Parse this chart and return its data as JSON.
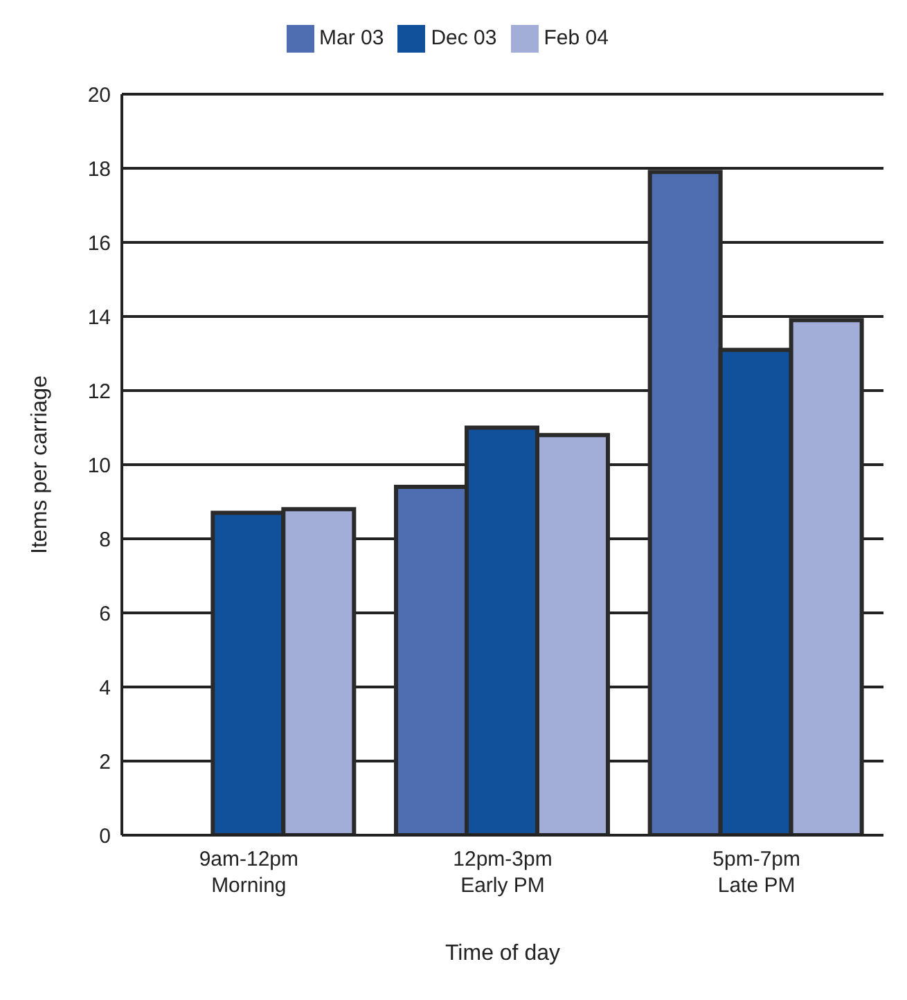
{
  "chart_data": {
    "type": "bar",
    "xlabel": "Time of day",
    "ylabel": "Items per carriage",
    "categories": [
      "9am-12pm\nMorning",
      "12pm-3pm\nEarly PM",
      "5pm-7pm\nLate PM"
    ],
    "series": [
      {
        "name": "Mar 03",
        "color": "#4e6eb1",
        "values": [
          null,
          9.4,
          17.9
        ]
      },
      {
        "name": "Dec 03",
        "color": "#11519c",
        "values": [
          8.7,
          11.0,
          13.1
        ]
      },
      {
        "name": "Feb 04",
        "color": "#a2aed8",
        "values": [
          8.8,
          10.8,
          13.9
        ]
      }
    ],
    "ylim": [
      0,
      20
    ],
    "yticks": [
      0,
      2,
      4,
      6,
      8,
      10,
      12,
      14,
      16,
      18,
      20
    ],
    "grid": "y",
    "legend": "top"
  }
}
